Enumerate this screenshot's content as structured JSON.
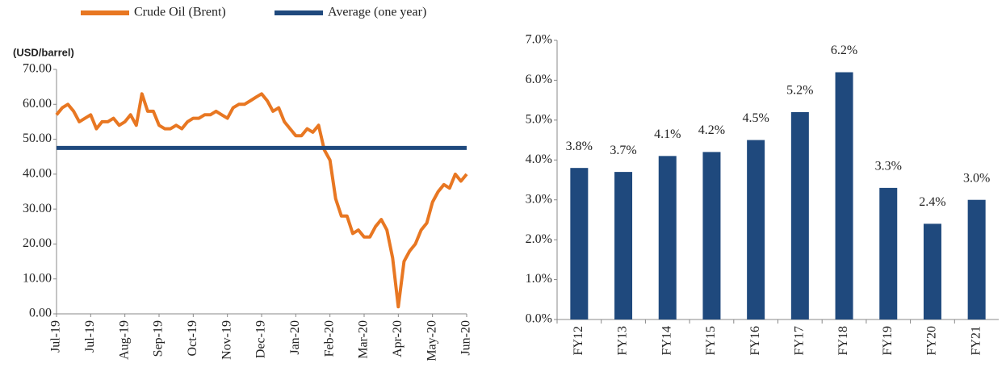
{
  "chart_data": [
    {
      "type": "line",
      "y_label": "(USD/barrel)",
      "categories": [
        "Jul-19",
        null,
        null,
        null,
        null,
        null,
        "Jul-19",
        null,
        null,
        null,
        null,
        null,
        "Aug-19",
        null,
        null,
        null,
        null,
        null,
        "Sep-19",
        null,
        null,
        null,
        null,
        null,
        "Oct-19",
        null,
        null,
        null,
        null,
        null,
        "Nov-19",
        null,
        null,
        null,
        null,
        null,
        "Dec-19",
        null,
        null,
        null,
        null,
        null,
        "Jan-20",
        null,
        null,
        null,
        null,
        null,
        "Feb-20",
        null,
        null,
        null,
        null,
        null,
        "Mar-20",
        null,
        null,
        null,
        null,
        null,
        "Apr-20",
        null,
        null,
        null,
        null,
        null,
        "May-20",
        null,
        null,
        null,
        null,
        null,
        "Jun-20"
      ],
      "series": [
        {
          "name": "Crude Oil (Brent)",
          "color": "#e87722",
          "values": [
            57,
            59,
            60,
            58,
            55,
            56,
            57,
            53,
            55,
            55,
            56,
            54,
            55,
            57,
            54,
            63,
            58,
            58,
            54,
            53,
            53,
            54,
            53,
            55,
            56,
            56,
            57,
            57,
            58,
            57,
            56,
            59,
            60,
            60,
            61,
            62,
            63,
            61,
            58,
            59,
            55,
            53,
            51,
            51,
            53,
            52,
            54,
            47,
            44,
            33,
            28,
            28,
            23,
            24,
            22,
            22,
            25,
            27,
            24,
            16,
            2,
            15,
            18,
            20,
            24,
            26,
            32,
            35,
            37,
            36,
            40,
            38,
            40
          ]
        },
        {
          "name": "Average (one year)",
          "color": "#1f497d",
          "values": [
            47.5,
            47.5,
            47.5,
            47.5,
            47.5,
            47.5,
            47.5,
            47.5,
            47.5,
            47.5,
            47.5,
            47.5,
            47.5,
            47.5,
            47.5,
            47.5,
            47.5,
            47.5,
            47.5,
            47.5,
            47.5,
            47.5,
            47.5,
            47.5,
            47.5,
            47.5,
            47.5,
            47.5,
            47.5,
            47.5,
            47.5,
            47.5,
            47.5,
            47.5,
            47.5,
            47.5,
            47.5,
            47.5,
            47.5,
            47.5,
            47.5,
            47.5,
            47.5,
            47.5,
            47.5,
            47.5,
            47.5,
            47.5,
            47.5,
            47.5,
            47.5,
            47.5,
            47.5,
            47.5,
            47.5,
            47.5,
            47.5,
            47.5,
            47.5,
            47.5,
            47.5,
            47.5,
            47.5,
            47.5,
            47.5,
            47.5,
            47.5,
            47.5,
            47.5,
            47.5,
            47.5,
            47.5,
            47.5
          ]
        }
      ],
      "ylim": [
        0,
        70
      ],
      "yticks": [
        {
          "value": 0,
          "label": "0.00"
        },
        {
          "value": 10,
          "label": "10.00"
        },
        {
          "value": 20,
          "label": "20.00"
        },
        {
          "value": 30,
          "label": "30.00"
        },
        {
          "value": 40,
          "label": "40.00"
        },
        {
          "value": 50,
          "label": "50.00"
        },
        {
          "value": 60,
          "label": "60.00"
        },
        {
          "value": 70,
          "label": "70.00"
        }
      ]
    },
    {
      "type": "bar",
      "categories": [
        "FY12",
        "FY13",
        "FY14",
        "FY15",
        "FY16",
        "FY17",
        "FY18",
        "FY19",
        "FY20",
        "FY21"
      ],
      "values": [
        3.8,
        3.7,
        4.1,
        4.2,
        4.5,
        5.2,
        6.2,
        3.3,
        2.4,
        3.0
      ],
      "value_labels": [
        "3.8%",
        "3.7%",
        "4.1%",
        "4.2%",
        "4.5%",
        "5.2%",
        "6.2%",
        "3.3%",
        "2.4%",
        "3.0%"
      ],
      "color": "#1f497d",
      "ylim": [
        0,
        7
      ],
      "yticks": [
        {
          "value": 0,
          "label": "0.0%"
        },
        {
          "value": 1,
          "label": "1.0%"
        },
        {
          "value": 2,
          "label": "2.0%"
        },
        {
          "value": 3,
          "label": "3.0%"
        },
        {
          "value": 4,
          "label": "4.0%"
        },
        {
          "value": 5,
          "label": "5.0%"
        },
        {
          "value": 6,
          "label": "6.0%"
        },
        {
          "value": 7,
          "label": "7.0%"
        }
      ]
    }
  ]
}
